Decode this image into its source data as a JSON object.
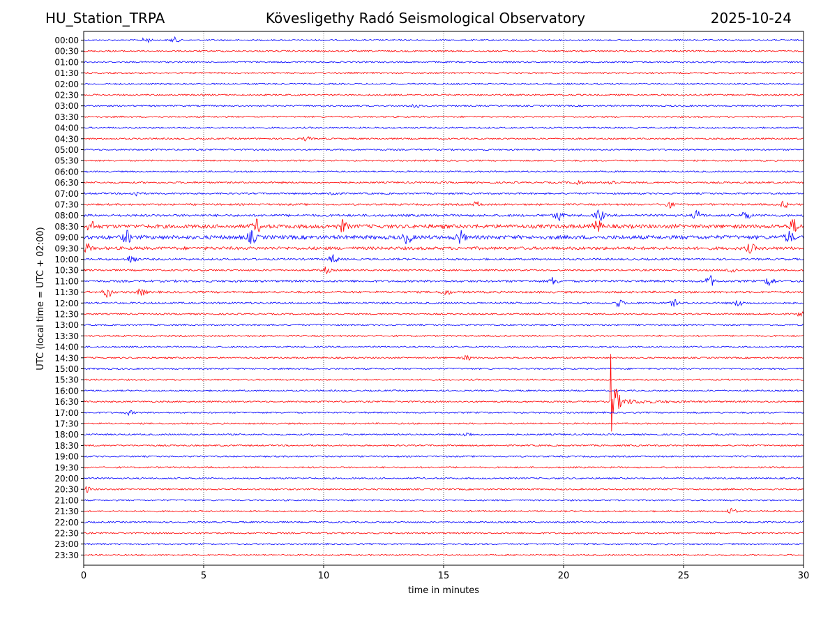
{
  "chart_data": {
    "type": "line",
    "title": "Kövesligethy Radó Seismological Observatory",
    "station": "HU_Station_TRPA",
    "date": "2025-10-24",
    "xlabel": "time in minutes",
    "ylabel": "UTC (local time = UTC + 02:00)",
    "xlim": [
      0,
      30
    ],
    "xticks": [
      "0",
      "5",
      "10",
      "15",
      "20",
      "25",
      "30"
    ],
    "rows": [
      "00:00",
      "00:30",
      "01:00",
      "01:30",
      "02:00",
      "02:30",
      "03:00",
      "03:30",
      "04:00",
      "04:30",
      "05:00",
      "05:30",
      "06:00",
      "06:30",
      "07:00",
      "07:30",
      "08:00",
      "08:30",
      "09:00",
      "09:30",
      "10:00",
      "10:30",
      "11:00",
      "11:30",
      "12:00",
      "12:30",
      "13:00",
      "13:30",
      "14:00",
      "14:30",
      "15:00",
      "15:30",
      "16:00",
      "16:30",
      "17:00",
      "17:30",
      "18:00",
      "18:30",
      "19:00",
      "19:30",
      "20:00",
      "20:30",
      "21:00",
      "21:30",
      "22:00",
      "22:30",
      "23:00",
      "23:30"
    ],
    "colors": [
      "#0000ff",
      "#ff0000"
    ],
    "row_noise": [
      1,
      1,
      1,
      1,
      1,
      1,
      1,
      1,
      1,
      1,
      1,
      1,
      1,
      1.1,
      1.1,
      1.2,
      1.5,
      2.4,
      2.4,
      1.9,
      1.3,
      1.1,
      1.4,
      1.3,
      1.2,
      1,
      1,
      1,
      1,
      1,
      1,
      1,
      1,
      1,
      1,
      1,
      1,
      1,
      1,
      1,
      1,
      1,
      1,
      1,
      1,
      1,
      1,
      1
    ],
    "events": [
      {
        "row": "00:00",
        "minute": 2.6,
        "amplitude": 0.5
      },
      {
        "row": "00:00",
        "minute": 3.8,
        "amplitude": 0.5
      },
      {
        "row": "03:00",
        "minute": 13.8,
        "amplitude": 0.5
      },
      {
        "row": "04:30",
        "minute": 9.3,
        "amplitude": 0.4
      },
      {
        "row": "06:30",
        "minute": 20.6,
        "amplitude": 0.5
      },
      {
        "row": "06:30",
        "minute": 22.0,
        "amplitude": 0.5
      },
      {
        "row": "07:00",
        "minute": 2.2,
        "amplitude": 0.5
      },
      {
        "row": "07:00",
        "minute": 10.4,
        "amplitude": 0.5
      },
      {
        "row": "07:30",
        "minute": 16.4,
        "amplitude": 0.5
      },
      {
        "row": "07:30",
        "minute": 24.4,
        "amplitude": 0.6
      },
      {
        "row": "07:30",
        "minute": 29.2,
        "amplitude": 0.6
      },
      {
        "row": "08:00",
        "minute": 19.8,
        "amplitude": 1.0
      },
      {
        "row": "08:00",
        "minute": 21.5,
        "amplitude": 1.2
      },
      {
        "row": "08:00",
        "minute": 25.6,
        "amplitude": 1.0
      },
      {
        "row": "08:00",
        "minute": 27.6,
        "amplitude": 0.8
      },
      {
        "row": "08:30",
        "minute": 0.3,
        "amplitude": 0.9
      },
      {
        "row": "08:30",
        "minute": 7.2,
        "amplitude": 1.2
      },
      {
        "row": "08:30",
        "minute": 10.8,
        "amplitude": 1.1
      },
      {
        "row": "08:30",
        "minute": 21.4,
        "amplitude": 1.2
      },
      {
        "row": "08:30",
        "minute": 29.6,
        "amplitude": 1.3
      },
      {
        "row": "09:00",
        "minute": 1.8,
        "amplitude": 1.2
      },
      {
        "row": "09:00",
        "minute": 7.0,
        "amplitude": 1.2
      },
      {
        "row": "09:00",
        "minute": 13.5,
        "amplitude": 1.2
      },
      {
        "row": "09:00",
        "minute": 15.7,
        "amplitude": 1.3
      },
      {
        "row": "09:00",
        "minute": 29.4,
        "amplitude": 1.1
      },
      {
        "row": "09:30",
        "minute": 0.1,
        "amplitude": 1.0
      },
      {
        "row": "09:30",
        "minute": 27.8,
        "amplitude": 0.9
      },
      {
        "row": "10:00",
        "minute": 2.0,
        "amplitude": 0.9
      },
      {
        "row": "10:00",
        "minute": 10.4,
        "amplitude": 0.8
      },
      {
        "row": "10:30",
        "minute": 10.1,
        "amplitude": 0.6
      },
      {
        "row": "10:30",
        "minute": 27.0,
        "amplitude": 0.6
      },
      {
        "row": "11:00",
        "minute": 19.6,
        "amplitude": 0.8
      },
      {
        "row": "11:00",
        "minute": 26.1,
        "amplitude": 1.1
      },
      {
        "row": "11:00",
        "minute": 28.6,
        "amplitude": 1.0
      },
      {
        "row": "11:30",
        "minute": 1.0,
        "amplitude": 1.1
      },
      {
        "row": "11:30",
        "minute": 2.4,
        "amplitude": 0.7
      },
      {
        "row": "11:30",
        "minute": 15.1,
        "amplitude": 0.6
      },
      {
        "row": "12:00",
        "minute": 22.3,
        "amplitude": 0.7
      },
      {
        "row": "12:00",
        "minute": 24.6,
        "amplitude": 0.6
      },
      {
        "row": "12:00",
        "minute": 27.3,
        "amplitude": 0.6
      },
      {
        "row": "12:30",
        "minute": 29.9,
        "amplitude": 0.5
      },
      {
        "row": "14:30",
        "minute": 16.0,
        "amplitude": 0.5
      },
      {
        "row": "16:30",
        "minute": 21.95,
        "amplitude": 9.0,
        "decay": 1.3
      },
      {
        "row": "17:00",
        "minute": 1.9,
        "amplitude": 0.4
      },
      {
        "row": "18:00",
        "minute": 16.0,
        "amplitude": 0.4
      },
      {
        "row": "20:30",
        "minute": 0.1,
        "amplitude": 0.6
      },
      {
        "row": "21:30",
        "minute": 27.0,
        "amplitude": 0.6
      }
    ]
  }
}
